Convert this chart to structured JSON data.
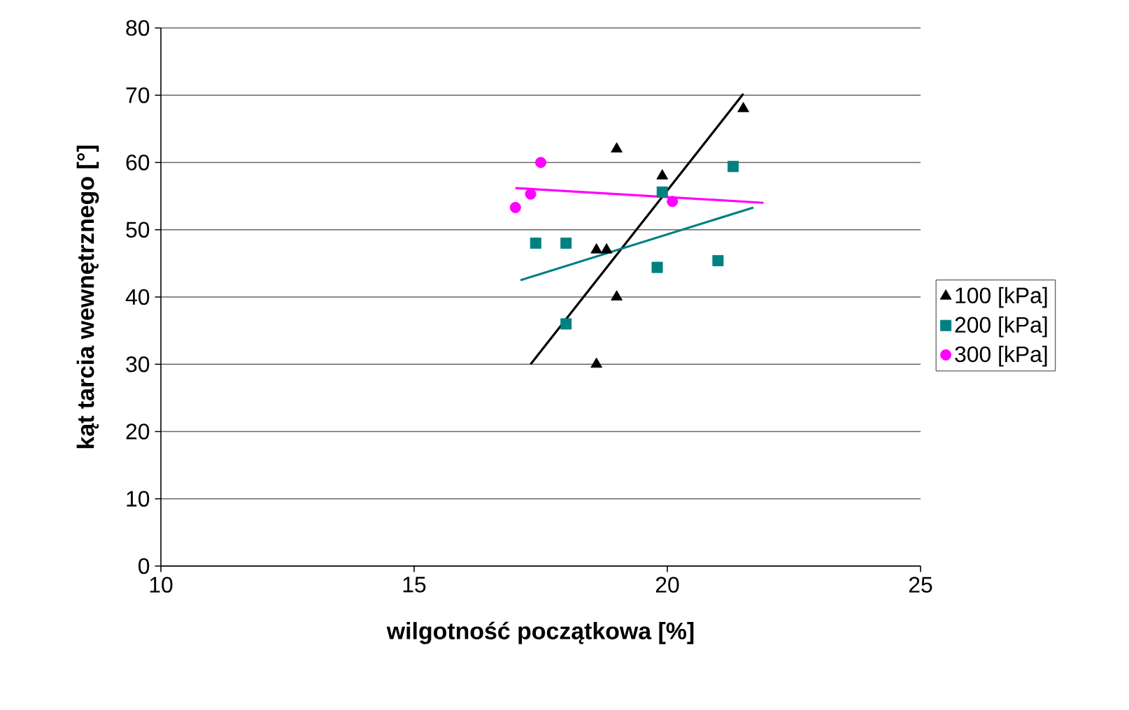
{
  "chart_data": {
    "type": "scatter",
    "xlabel": "wilgotność początkowa [%]",
    "ylabel": "kąt tarcia wewnętrznego [°]",
    "xlim": [
      10,
      25
    ],
    "xticks": [
      10,
      15,
      20,
      25
    ],
    "ylim": [
      0,
      80
    ],
    "yticks": [
      0,
      10,
      20,
      30,
      40,
      50,
      60,
      70,
      80
    ],
    "grid": "y",
    "legend": "right",
    "series": [
      {
        "name": "100 [kPa]",
        "marker": "triangle",
        "color": "#000000",
        "x": [
          19.0,
          19.9,
          21.5,
          18.6,
          18.8,
          19.0,
          18.6
        ],
        "values": [
          62,
          58,
          68,
          47,
          47,
          40,
          30
        ]
      },
      {
        "name": "200 [kPa]",
        "marker": "square",
        "color": "#008080",
        "x": [
          17.4,
          18.0,
          18.0,
          19.8,
          21.0,
          21.3,
          19.9
        ],
        "values": [
          48,
          48,
          36,
          44.4,
          45.4,
          59.4,
          55.6
        ]
      },
      {
        "name": "300 [kPa]",
        "marker": "circle",
        "color": "#ff00ff",
        "x": [
          17.0,
          17.3,
          17.5,
          20.1
        ],
        "values": [
          53.3,
          55.3,
          60,
          54.2
        ]
      },
      {
        "type": "line",
        "marker": "none",
        "color": "#000000",
        "x": [
          17.3,
          21.5
        ],
        "values": [
          30,
          70.2
        ]
      },
      {
        "type": "line",
        "marker": "none",
        "color": "#008080",
        "x": [
          17.1,
          21.7
        ],
        "values": [
          42.5,
          53.3
        ]
      },
      {
        "type": "line",
        "marker": "none",
        "color": "#ff00ff",
        "x": [
          17.0,
          21.9
        ],
        "values": [
          56.2,
          54.0
        ]
      }
    ]
  }
}
